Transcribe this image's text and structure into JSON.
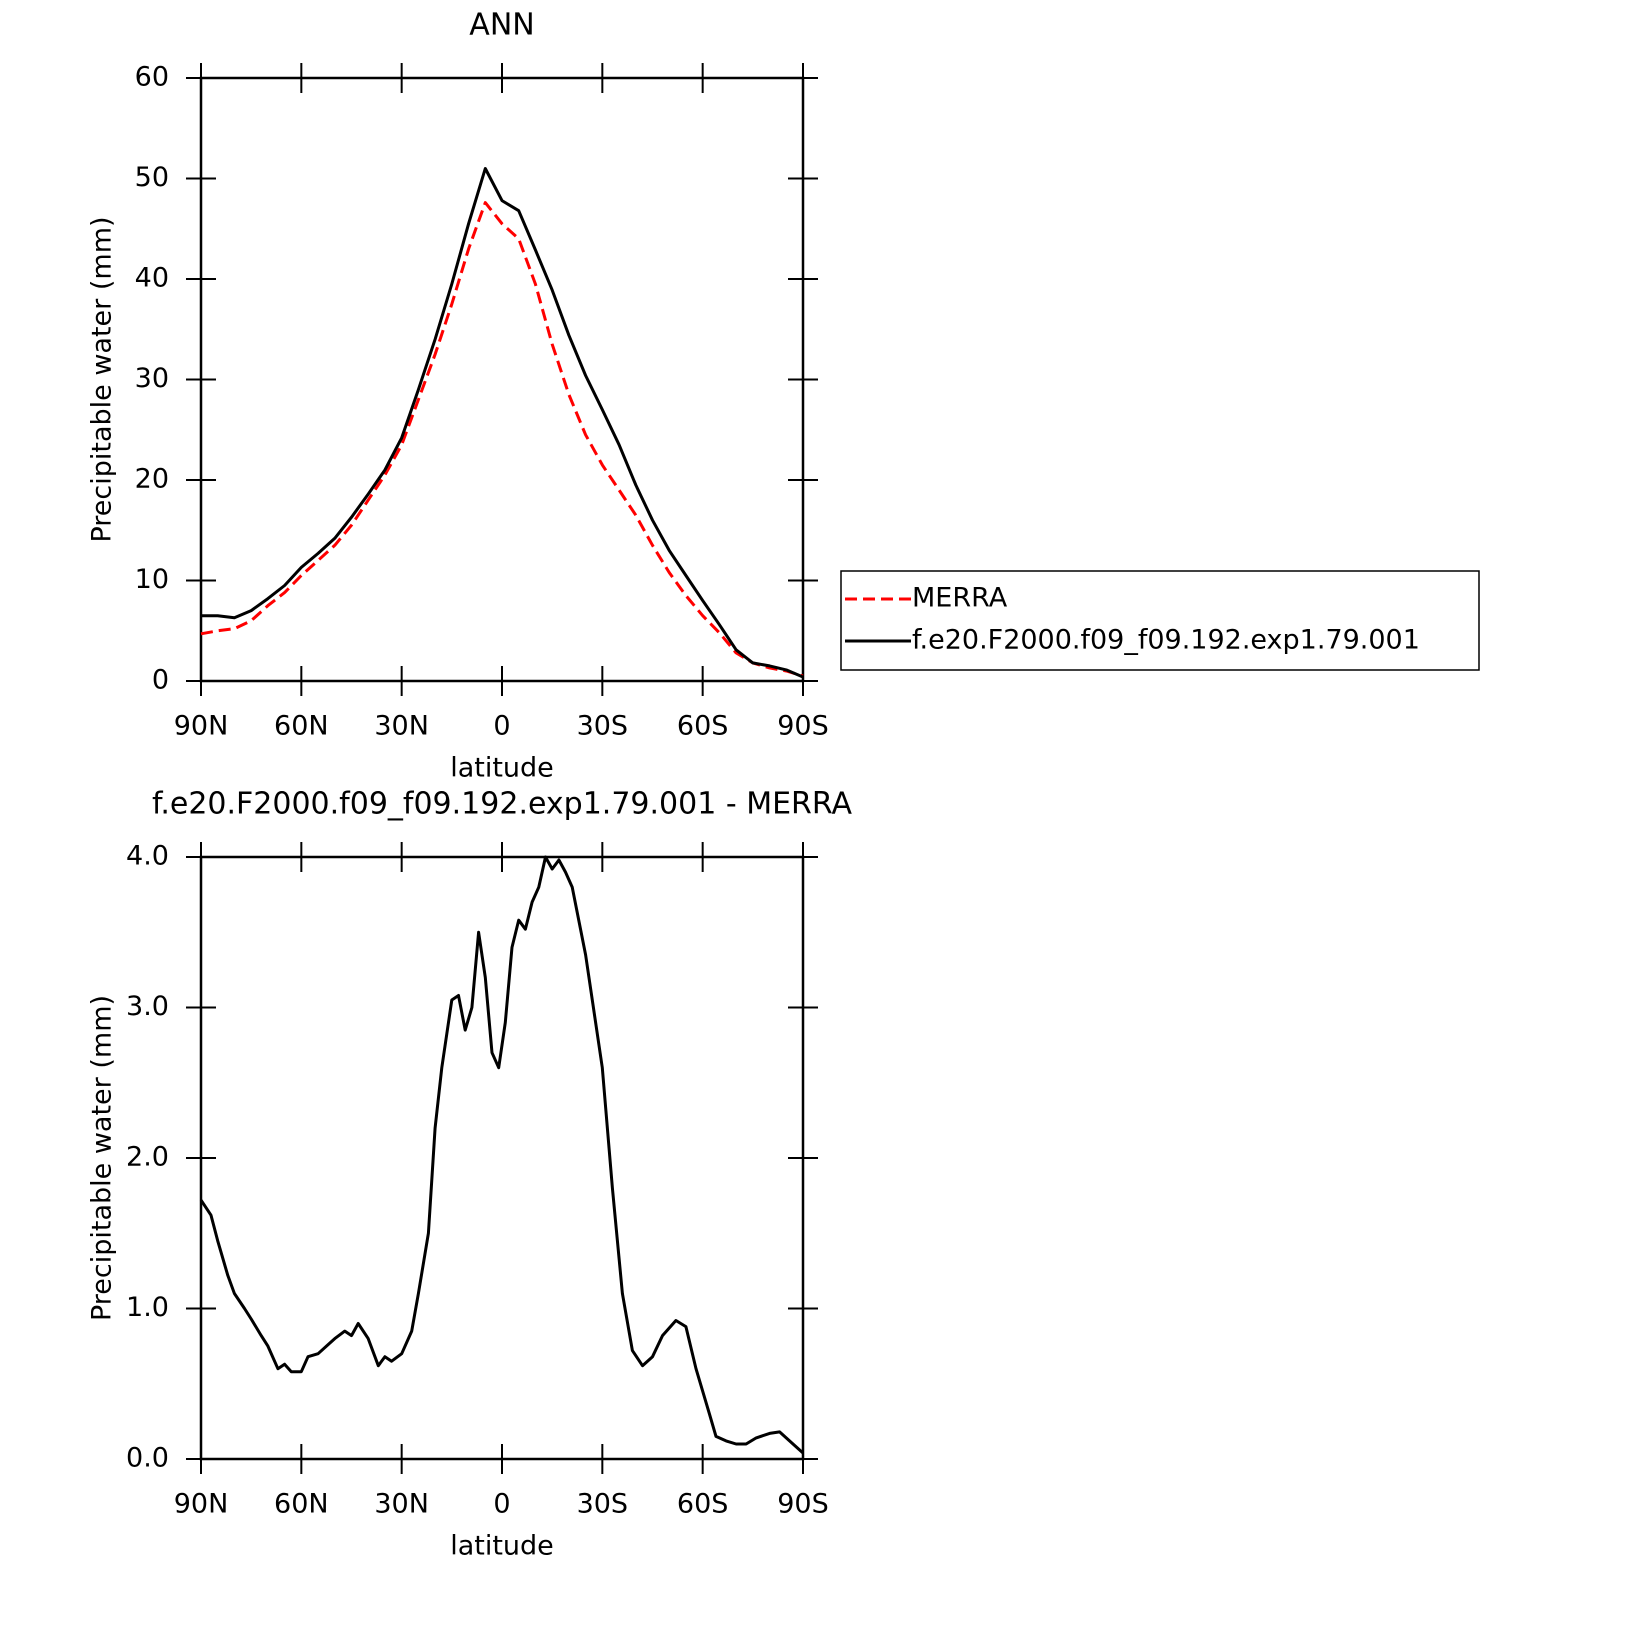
{
  "chart_data": [
    {
      "type": "line",
      "title": "ANN",
      "xlabel": "latitude",
      "ylabel": "Precipitable water (mm)",
      "x": [
        90,
        85,
        80,
        75,
        70,
        65,
        60,
        55,
        50,
        45,
        40,
        35,
        30,
        25,
        20,
        15,
        10,
        5,
        0,
        -5,
        -10,
        -15,
        -20,
        -25,
        -30,
        -35,
        -40,
        -45,
        -50,
        -55,
        -60,
        -65,
        -70,
        -75,
        -80,
        -85,
        -90
      ],
      "series": [
        {
          "name": "MERRA",
          "color": "#ff0000",
          "style": "dashed",
          "values": [
            4.7,
            5.0,
            5.2,
            6.0,
            7.5,
            8.8,
            10.5,
            12.0,
            13.5,
            15.5,
            18.0,
            20.5,
            23.5,
            28.0,
            32.5,
            37.5,
            43.0,
            47.6,
            45.5,
            44.0,
            39.5,
            33.5,
            28.5,
            24.5,
            21.5,
            19.0,
            16.5,
            13.5,
            10.8,
            8.5,
            6.5,
            4.8,
            2.8,
            1.8,
            1.3,
            1.0,
            0.5
          ]
        },
        {
          "name": "f.e20.F2000.f09_f09.192.exp1.79.001",
          "color": "#000000",
          "style": "solid",
          "values": [
            6.5,
            6.5,
            6.3,
            7.0,
            8.2,
            9.5,
            11.3,
            12.7,
            14.2,
            16.3,
            18.6,
            21.0,
            24.2,
            29.0,
            34.0,
            39.5,
            45.5,
            51.0,
            47.8,
            46.8,
            42.9,
            38.9,
            34.4,
            30.4,
            27.0,
            23.5,
            19.5,
            16.0,
            13.0,
            10.5,
            8.0,
            5.6,
            3.1,
            1.8,
            1.5,
            1.1,
            0.4
          ]
        }
      ],
      "xlim": [
        90,
        -90
      ],
      "xticks": [
        {
          "value": 90,
          "label": "90N"
        },
        {
          "value": 60,
          "label": "60N"
        },
        {
          "value": 30,
          "label": "30N"
        },
        0,
        {
          "value": -30,
          "label": "30S"
        },
        {
          "value": -60,
          "label": "60S"
        },
        {
          "value": -90,
          "label": "90S"
        }
      ],
      "ylim": [
        0,
        60
      ],
      "yticks": [
        0,
        10,
        20,
        30,
        40,
        50,
        60
      ],
      "legend": "right"
    },
    {
      "type": "line",
      "title": "f.e20.F2000.f09_f09.192.exp1.79.001 - MERRA",
      "xlabel": "latitude",
      "ylabel": "Precipitable water (mm)",
      "x": [
        90,
        87,
        85,
        82,
        80,
        77,
        75,
        72,
        70,
        67,
        65,
        63,
        60,
        58,
        55,
        52,
        50,
        47,
        45,
        43,
        40,
        37,
        35,
        33,
        30,
        27,
        25,
        22,
        20,
        18,
        15,
        13,
        11,
        9,
        7,
        5,
        3,
        1,
        -1,
        -3,
        -5,
        -7,
        -9,
        -11,
        -13,
        -15,
        -17,
        -19,
        -21,
        -25,
        -30,
        -33,
        -36,
        -39,
        -42,
        -45,
        -48,
        -52,
        -55,
        -58,
        -62,
        -64,
        -67,
        -70,
        -73,
        -76,
        -80,
        -83,
        -87,
        -90
      ],
      "series": [
        {
          "color": "#000000",
          "style": "solid",
          "values": [
            1.72,
            1.62,
            1.45,
            1.22,
            1.1,
            1.0,
            0.93,
            0.82,
            0.75,
            0.6,
            0.63,
            0.58,
            0.58,
            0.68,
            0.7,
            0.76,
            0.8,
            0.85,
            0.82,
            0.9,
            0.8,
            0.62,
            0.68,
            0.65,
            0.7,
            0.85,
            1.1,
            1.5,
            2.2,
            2.6,
            3.05,
            3.08,
            2.85,
            3.0,
            3.5,
            3.2,
            2.7,
            2.6,
            2.9,
            3.4,
            3.58,
            3.52,
            3.7,
            3.8,
            4.0,
            3.92,
            3.98,
            3.9,
            3.8,
            3.35,
            2.6,
            1.8,
            1.1,
            0.72,
            0.62,
            0.68,
            0.82,
            0.92,
            0.88,
            0.6,
            0.3,
            0.15,
            0.12,
            0.1,
            0.1,
            0.14,
            0.17,
            0.18,
            0.1,
            0.04
          ]
        }
      ],
      "xlim": [
        90,
        -90
      ],
      "xticks": [
        {
          "value": 90,
          "label": "90N"
        },
        {
          "value": 60,
          "label": "60N"
        },
        {
          "value": 30,
          "label": "30N"
        },
        0,
        {
          "value": -30,
          "label": "30S"
        },
        {
          "value": -60,
          "label": "60S"
        },
        {
          "value": -90,
          "label": "90S"
        }
      ],
      "ylim": [
        0,
        4
      ],
      "yticks": [
        {
          "value": 0,
          "label": "0.0"
        },
        {
          "value": 1,
          "label": "1.0"
        },
        {
          "value": 2,
          "label": "2.0"
        },
        {
          "value": 3,
          "label": "3.0"
        },
        {
          "value": 4,
          "label": "4.0"
        }
      ]
    }
  ]
}
